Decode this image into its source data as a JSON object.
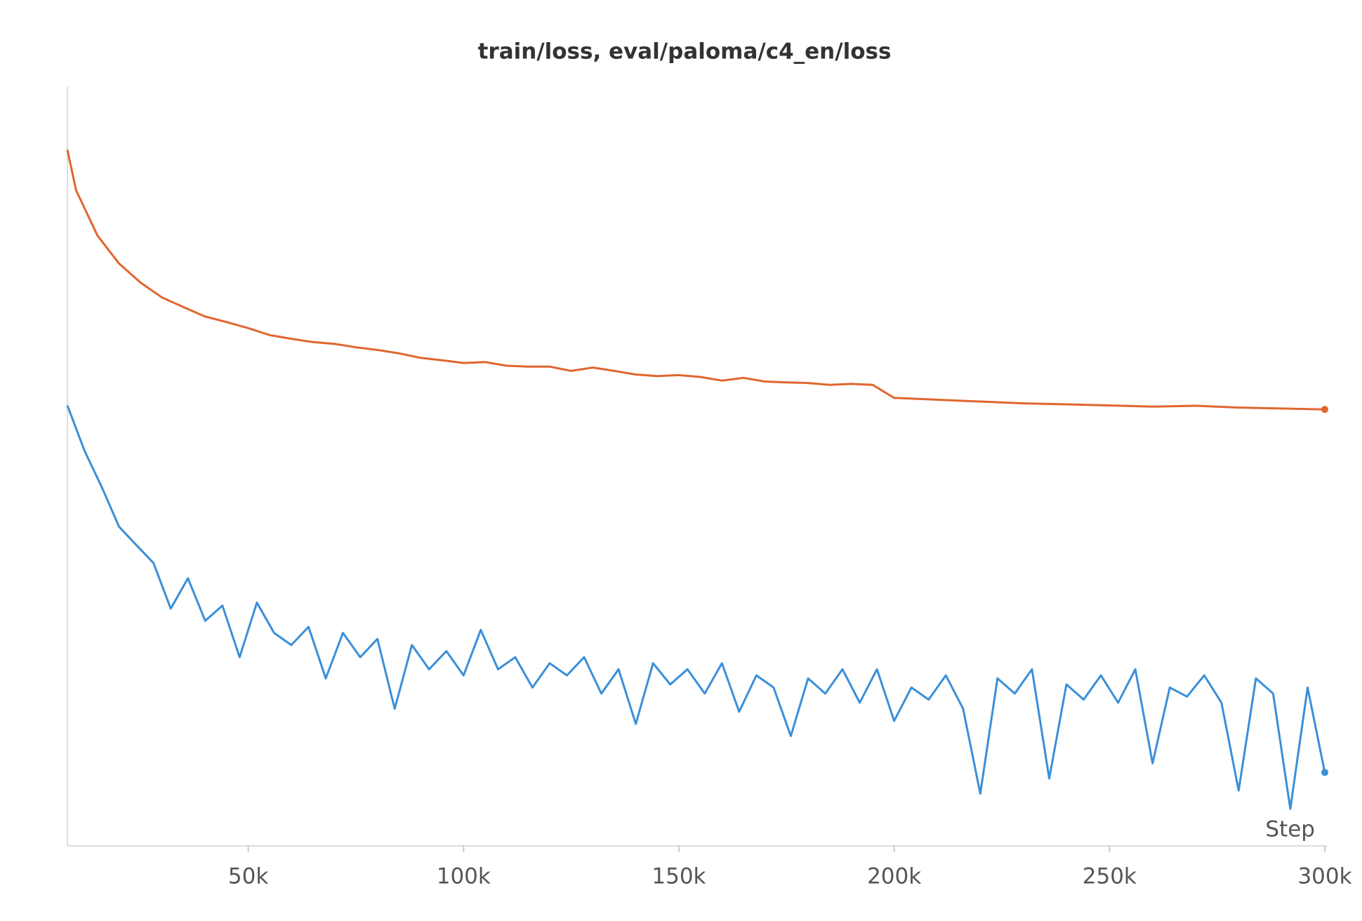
{
  "chart_data": {
    "type": "line",
    "title": "train/loss, eval/paloma/c4_en/loss",
    "x_label": "Step",
    "xlim": [
      8000,
      300000
    ],
    "ylim": [
      2.0,
      4.5
    ],
    "xticks": [
      {
        "value": 50000,
        "label": "50k"
      },
      {
        "value": 100000,
        "label": "100k"
      },
      {
        "value": 150000,
        "label": "150k"
      },
      {
        "value": 200000,
        "label": "200k"
      },
      {
        "value": 250000,
        "label": "250k"
      },
      {
        "value": 300000,
        "label": "300k"
      }
    ],
    "series": [
      {
        "color": "#3a8fd9",
        "x": [
          8000,
          12000,
          16000,
          20000,
          24000,
          28000,
          32000,
          36000,
          40000,
          44000,
          48000,
          52000,
          56000,
          60000,
          64000,
          68000,
          72000,
          76000,
          80000,
          84000,
          88000,
          92000,
          96000,
          100000,
          104000,
          108000,
          112000,
          116000,
          120000,
          124000,
          128000,
          132000,
          136000,
          140000,
          144000,
          148000,
          152000,
          156000,
          160000,
          164000,
          168000,
          172000,
          176000,
          180000,
          184000,
          188000,
          192000,
          196000,
          200000,
          204000,
          208000,
          212000,
          216000,
          220000,
          224000,
          228000,
          232000,
          236000,
          240000,
          244000,
          248000,
          252000,
          256000,
          260000,
          264000,
          268000,
          272000,
          276000,
          280000,
          284000,
          288000,
          292000,
          296000,
          300000
        ],
        "values": [
          3.45,
          3.3,
          3.18,
          3.05,
          2.99,
          2.93,
          2.78,
          2.88,
          2.74,
          2.79,
          2.62,
          2.8,
          2.7,
          2.66,
          2.72,
          2.55,
          2.7,
          2.62,
          2.68,
          2.45,
          2.66,
          2.58,
          2.64,
          2.56,
          2.71,
          2.58,
          2.62,
          2.52,
          2.6,
          2.56,
          2.62,
          2.5,
          2.58,
          2.4,
          2.6,
          2.53,
          2.58,
          2.5,
          2.6,
          2.44,
          2.56,
          2.52,
          2.36,
          2.55,
          2.5,
          2.58,
          2.47,
          2.58,
          2.41,
          2.52,
          2.48,
          2.56,
          2.45,
          2.17,
          2.55,
          2.5,
          2.58,
          2.22,
          2.53,
          2.48,
          2.56,
          2.47,
          2.58,
          2.27,
          2.52,
          2.49,
          2.56,
          2.47,
          2.18,
          2.55,
          2.5,
          2.12,
          2.52,
          2.24
        ]
      },
      {
        "color": "#e0662f",
        "x": [
          8000,
          10000,
          15000,
          20000,
          25000,
          30000,
          35000,
          40000,
          45000,
          50000,
          55000,
          60000,
          65000,
          70000,
          75000,
          80000,
          85000,
          90000,
          95000,
          100000,
          105000,
          110000,
          115000,
          120000,
          125000,
          130000,
          135000,
          140000,
          145000,
          150000,
          155000,
          160000,
          165000,
          170000,
          175000,
          180000,
          185000,
          190000,
          195000,
          200000,
          215000,
          230000,
          245000,
          260000,
          270000,
          280000,
          300000
        ],
        "values": [
          4.293,
          4.16,
          4.01,
          3.918,
          3.855,
          3.806,
          3.774,
          3.743,
          3.725,
          3.705,
          3.682,
          3.67,
          3.659,
          3.653,
          3.642,
          3.633,
          3.622,
          3.607,
          3.599,
          3.59,
          3.593,
          3.581,
          3.578,
          3.578,
          3.564,
          3.575,
          3.564,
          3.552,
          3.547,
          3.55,
          3.544,
          3.532,
          3.541,
          3.529,
          3.526,
          3.524,
          3.518,
          3.521,
          3.518,
          3.475,
          3.466,
          3.457,
          3.452,
          3.446,
          3.449,
          3.443,
          3.437
        ]
      }
    ]
  }
}
